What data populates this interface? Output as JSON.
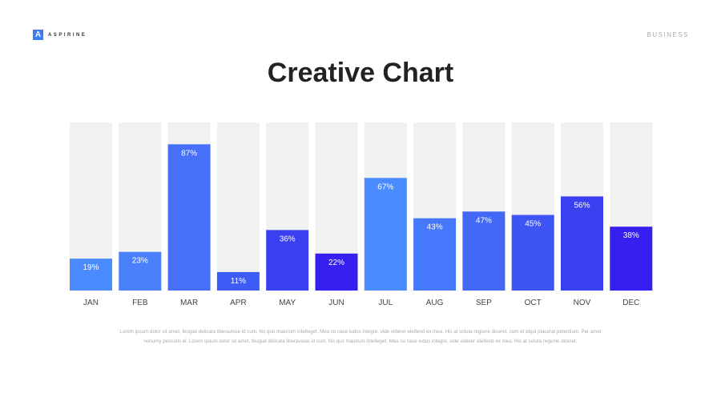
{
  "brand": {
    "logo_letter": "A",
    "name": "ASPIRINE"
  },
  "category": "BUSINESS",
  "title": "Creative Chart",
  "description": "Lorem ipsum dolor sit amet, feugiat delicata liberavisse id cum. No quo maiorum intelleget. Mea cu case ludus integre, vide viderer eleifend ex mea. His at soluta regione diceret, cum et atqui placerat petentium. Per amet nonumy periculis ei. Lorem ipsum dolor sit amet, feugiat delicata liberavisse id cum. No quo maiorum intelleget. Mea cu case ludus integre, vide viderer eleifend ex mea. His at soluta regione diceret.",
  "chart_data": {
    "type": "bar",
    "title": "Creative Chart",
    "categories": [
      "JAN",
      "FEB",
      "MAR",
      "APR",
      "MAY",
      "JUN",
      "JUL",
      "AUG",
      "SEP",
      "OCT",
      "NOV",
      "DEC"
    ],
    "values": [
      19,
      23,
      87,
      11,
      36,
      22,
      67,
      43,
      47,
      45,
      56,
      38
    ],
    "labels": [
      "19%",
      "23%",
      "87%",
      "11%",
      "36%",
      "22%",
      "67%",
      "43%",
      "47%",
      "45%",
      "56%",
      "38%"
    ],
    "ylim": [
      0,
      100
    ],
    "colors": [
      "#4a8cff",
      "#4a80fb",
      "#4670f8",
      "#3d5cf5",
      "#3a3ff0",
      "#3620ef",
      "#4a8cff",
      "#4678fb",
      "#4468f6",
      "#3f55f3",
      "#3a3ff0",
      "#3620ef"
    ],
    "track_color": "#f1f1f1"
  }
}
